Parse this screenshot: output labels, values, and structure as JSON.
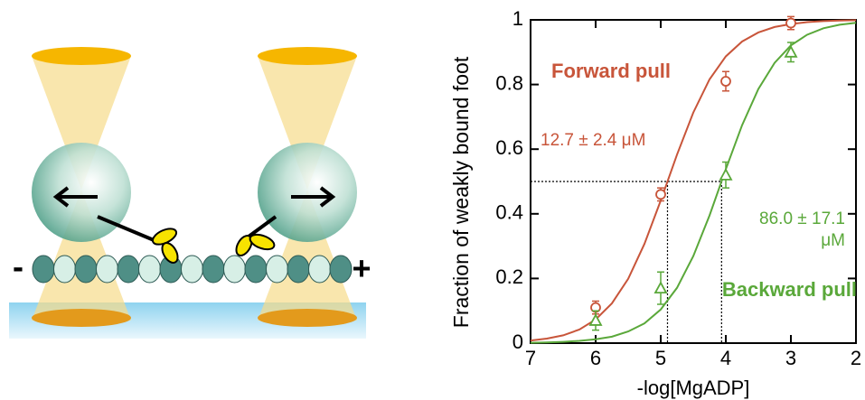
{
  "diagram": {
    "minus_label": "-",
    "plus_label": "+"
  },
  "chart_data": {
    "type": "scatter",
    "x_label": "-log[MgADP]",
    "y_label": "Fraction of weakly bound foot",
    "xlim": [
      7,
      2
    ],
    "xticks": [
      7,
      6,
      5,
      4,
      3,
      2
    ],
    "ylim": [
      0,
      1
    ],
    "yticks": [
      0,
      0.2,
      0.4,
      0.6,
      0.8,
      1
    ],
    "half_level": 0.5,
    "series": [
      {
        "name": "Forward pull",
        "color": "#c8553a",
        "marker": "circle",
        "x": [
          6,
          5,
          4,
          3
        ],
        "values": [
          0.11,
          0.46,
          0.81,
          0.99
        ],
        "errors": [
          0.02,
          0.02,
          0.03,
          0.02
        ],
        "midpoint": 4.896,
        "fit_label": "12.7 ± 2.4 μM",
        "fit_x": [
          7,
          6.75,
          6.5,
          6.25,
          6,
          5.75,
          5.5,
          5.25,
          5,
          4.75,
          4.5,
          4.25,
          4,
          3.75,
          3.5,
          3.25,
          3,
          2.75,
          2.5,
          2.25,
          2
        ],
        "fit_y": [
          0.008,
          0.014,
          0.024,
          0.042,
          0.073,
          0.123,
          0.199,
          0.307,
          0.441,
          0.583,
          0.713,
          0.816,
          0.887,
          0.933,
          0.961,
          0.978,
          0.987,
          0.993,
          0.996,
          0.998,
          0.999
        ]
      },
      {
        "name": "Backward pull",
        "color": "#5aa83a",
        "marker": "triangle",
        "x": [
          6,
          5,
          4,
          3
        ],
        "values": [
          0.07,
          0.17,
          0.52,
          0.9
        ],
        "errors": [
          0.03,
          0.05,
          0.04,
          0.03
        ],
        "midpoint": 4.065,
        "fit_label": [
          "86.0 ± 17.1",
          "μM"
        ],
        "fit_x": [
          7,
          6.75,
          6.5,
          6.25,
          6,
          5.75,
          5.5,
          5.25,
          5,
          4.75,
          4.5,
          4.25,
          4,
          3.75,
          3.5,
          3.25,
          3,
          2.75,
          2.5,
          2.25,
          2
        ],
        "fit_y": [
          0.001,
          0.002,
          0.004,
          0.007,
          0.012,
          0.02,
          0.036,
          0.061,
          0.104,
          0.171,
          0.269,
          0.395,
          0.538,
          0.674,
          0.786,
          0.867,
          0.921,
          0.954,
          0.974,
          0.985,
          0.991
        ]
      }
    ]
  }
}
